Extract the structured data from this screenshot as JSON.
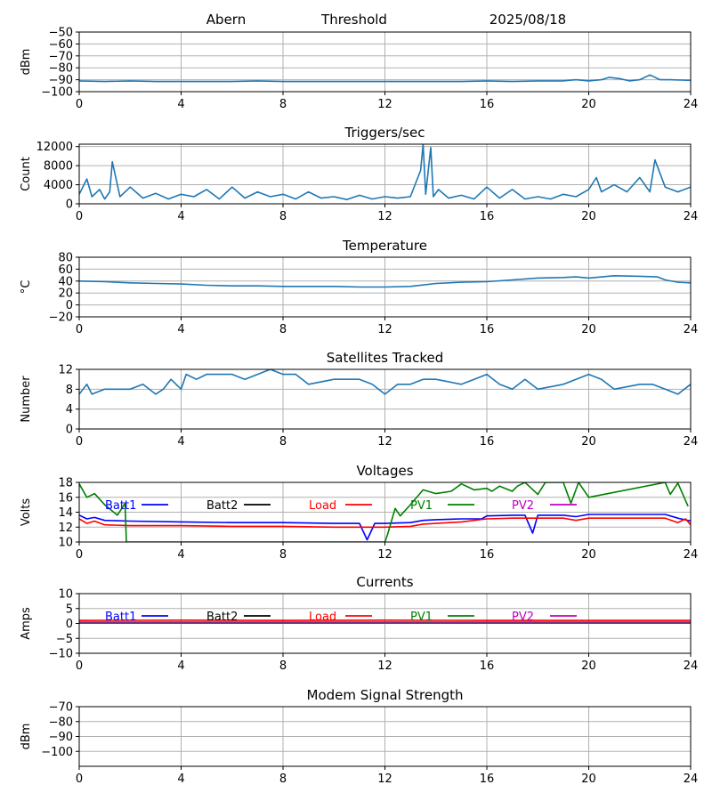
{
  "header": {
    "station": "Abern",
    "label": "Threshold",
    "date": "2025/08/18"
  },
  "colors": {
    "series": "#1f77b4",
    "grid": "#b0b0b0",
    "batt1": "#0000ff",
    "batt2": "#000000",
    "load": "#ff0000",
    "pv1": "#008000",
    "pv2": "#bf00bf"
  },
  "chart_data": [
    {
      "id": "threshold",
      "type": "line",
      "title": "",
      "xlabel": "",
      "ylabel": "dBm",
      "xlim": [
        0,
        24
      ],
      "ylim": [
        -100,
        -50
      ],
      "grid": true,
      "xticks": [
        "0",
        "4",
        "8",
        "12",
        "16",
        "20",
        "24"
      ],
      "yticks": [
        "−100",
        "−90",
        "−80",
        "−70",
        "−60",
        "−50"
      ],
      "series": [
        {
          "name": "",
          "x": [
            0,
            1,
            2,
            3,
            4,
            5,
            6,
            7,
            8,
            9,
            10,
            11,
            12,
            13,
            14,
            15,
            16,
            17,
            18,
            19,
            19.5,
            20,
            20.5,
            20.8,
            21.2,
            21.6,
            22,
            22.4,
            22.8,
            23.2,
            24
          ],
          "y": [
            -91,
            -91.5,
            -91,
            -91.5,
            -91.5,
            -91.5,
            -91.5,
            -91,
            -91.5,
            -91.5,
            -91.5,
            -91.5,
            -91.5,
            -91.5,
            -91.5,
            -91.5,
            -91,
            -91.5,
            -91,
            -91,
            -90,
            -91,
            -90,
            -88,
            -89,
            -91,
            -90,
            -86,
            -90,
            -90,
            -90.5
          ]
        }
      ]
    },
    {
      "id": "triggers",
      "type": "line",
      "title": "Triggers/sec",
      "xlabel": "",
      "ylabel": "Count",
      "xlim": [
        0,
        24
      ],
      "ylim": [
        0,
        12500
      ],
      "grid": true,
      "xticks": [
        "0",
        "4",
        "8",
        "12",
        "16",
        "20",
        "24"
      ],
      "yticks": [
        "0",
        "4000",
        "8000",
        "12000"
      ],
      "series": [
        {
          "name": "",
          "x": [
            0,
            0.3,
            0.5,
            0.8,
            1.0,
            1.2,
            1.3,
            1.6,
            2.0,
            2.5,
            3.0,
            3.5,
            4.0,
            4.5,
            5.0,
            5.5,
            6.0,
            6.5,
            7.0,
            7.5,
            8.0,
            8.5,
            9.0,
            9.5,
            10.0,
            10.5,
            11.0,
            11.5,
            12.0,
            12.5,
            13.0,
            13.4,
            13.5,
            13.6,
            13.8,
            13.9,
            14.1,
            14.5,
            15.0,
            15.5,
            16.0,
            16.5,
            17.0,
            17.5,
            18.0,
            18.5,
            19.0,
            19.5,
            20.0,
            20.3,
            20.5,
            21.0,
            21.5,
            22.0,
            22.4,
            22.6,
            23.0,
            23.5,
            24.0
          ],
          "y": [
            2000,
            5200,
            1500,
            3000,
            1000,
            2500,
            8800,
            1500,
            3500,
            1200,
            2200,
            1000,
            2000,
            1500,
            3000,
            1000,
            3500,
            1200,
            2500,
            1500,
            2000,
            1000,
            2500,
            1200,
            1500,
            900,
            1800,
            1000,
            1500,
            1200,
            1500,
            7000,
            12500,
            2000,
            11800,
            1500,
            3000,
            1200,
            1800,
            1000,
            3500,
            1200,
            3000,
            1000,
            1500,
            1000,
            2000,
            1500,
            3000,
            5500,
            2500,
            4000,
            2500,
            5500,
            2500,
            9200,
            3500,
            2500,
            3500
          ]
        }
      ]
    },
    {
      "id": "temperature",
      "type": "line",
      "title": "Temperature",
      "xlabel": "",
      "ylabel": "°C",
      "xlim": [
        0,
        24
      ],
      "ylim": [
        -20,
        80
      ],
      "grid": true,
      "xticks": [
        "0",
        "4",
        "8",
        "12",
        "16",
        "20",
        "24"
      ],
      "yticks": [
        "−20",
        "0",
        "20",
        "40",
        "60",
        "80"
      ],
      "series": [
        {
          "name": "",
          "x": [
            0,
            1,
            2,
            3,
            4,
            5,
            6,
            7,
            8,
            9,
            10,
            11,
            12,
            13,
            14,
            15,
            16,
            17,
            18,
            19,
            19.5,
            20,
            21,
            22,
            22.7,
            23,
            23.5,
            24
          ],
          "y": [
            40,
            39,
            37,
            36,
            35,
            33,
            32,
            32,
            31,
            31,
            31,
            30,
            30,
            31,
            36,
            38,
            39,
            42,
            45,
            46,
            47,
            45,
            49,
            48,
            47,
            42,
            38,
            37
          ]
        }
      ]
    },
    {
      "id": "satellites",
      "type": "line",
      "title": "Satellites Tracked",
      "xlabel": "",
      "ylabel": "Number",
      "xlim": [
        0,
        24
      ],
      "ylim": [
        0,
        12
      ],
      "grid": true,
      "xticks": [
        "0",
        "4",
        "8",
        "12",
        "16",
        "20",
        "24"
      ],
      "yticks": [
        "0",
        "4",
        "8",
        "12"
      ],
      "series": [
        {
          "name": "",
          "x": [
            0,
            0.15,
            0.3,
            0.5,
            1,
            1.5,
            2,
            2.5,
            3,
            3.3,
            3.6,
            4,
            4.2,
            4.6,
            5,
            6,
            6.5,
            7,
            7.5,
            8,
            8.5,
            9,
            10,
            11,
            11.5,
            12,
            12.5,
            13,
            13.5,
            14,
            15,
            15.5,
            16,
            16.5,
            17,
            17.5,
            18,
            19,
            19.5,
            20,
            20.5,
            21,
            22,
            22.5,
            23,
            23.5,
            24
          ],
          "y": [
            7,
            8,
            9,
            7,
            8,
            8,
            8,
            9,
            7,
            8,
            10,
            8,
            11,
            10,
            11,
            11,
            10,
            11,
            12,
            11,
            11,
            9,
            10,
            10,
            9,
            7,
            9,
            9,
            10,
            10,
            9,
            10,
            11,
            9,
            8,
            10,
            8,
            9,
            10,
            11,
            10,
            8,
            9,
            9,
            8,
            7,
            9
          ]
        }
      ]
    },
    {
      "id": "voltages",
      "type": "line",
      "title": "Voltages",
      "xlabel": "",
      "ylabel": "Volts",
      "xlim": [
        0,
        24
      ],
      "ylim": [
        10,
        18
      ],
      "grid": true,
      "xticks": [
        "0",
        "4",
        "8",
        "12",
        "16",
        "20",
        "24"
      ],
      "yticks": [
        "10",
        "12",
        "14",
        "16",
        "18"
      ],
      "series": [
        {
          "name": "Batt1",
          "color": "#0000ff",
          "x": [
            0,
            0.3,
            0.6,
            1,
            2,
            4,
            6,
            8,
            10,
            11,
            11.3,
            11.6,
            12,
            13,
            13.5,
            14,
            15,
            15.8,
            16,
            17,
            17.5,
            17.8,
            18,
            19,
            19.5,
            20,
            20.5,
            21,
            22,
            23,
            23.5,
            24
          ],
          "y": [
            13.6,
            13.1,
            13.3,
            12.9,
            12.8,
            12.7,
            12.6,
            12.6,
            12.5,
            12.5,
            10.3,
            12.5,
            12.5,
            12.6,
            12.9,
            13.0,
            13.1,
            13.1,
            13.5,
            13.6,
            13.6,
            11.2,
            13.6,
            13.6,
            13.4,
            13.7,
            13.7,
            13.7,
            13.7,
            13.7,
            13.2,
            12.8
          ]
        },
        {
          "name": "Batt2",
          "color": "#000000",
          "x": [],
          "y": []
        },
        {
          "name": "Load",
          "color": "#ff0000",
          "x": [
            0,
            0.3,
            0.6,
            1,
            2,
            4,
            6,
            8,
            10,
            11,
            11.6,
            12,
            13,
            13.5,
            14,
            15,
            16,
            17,
            18,
            19,
            19.5,
            20,
            21,
            22,
            23,
            23.5,
            23.8,
            24
          ],
          "y": [
            13.1,
            12.5,
            12.8,
            12.3,
            12.2,
            12.2,
            12.1,
            12.1,
            12.0,
            12.0,
            12.0,
            12.0,
            12.1,
            12.4,
            12.5,
            12.7,
            13.1,
            13.2,
            13.2,
            13.2,
            12.9,
            13.2,
            13.2,
            13.2,
            13.2,
            12.6,
            13.1,
            12.3
          ]
        },
        {
          "name": "PV1",
          "color": "#008000",
          "x": [
            0,
            0.3,
            0.6,
            1,
            1.5,
            1.8,
            1.85,
            12,
            12.1,
            12.4,
            12.6,
            13,
            13.5,
            14,
            14.6,
            15,
            15.5,
            16,
            16.2,
            16.5,
            17,
            17.2,
            17.5,
            18,
            18.3,
            19,
            19.3,
            19.6,
            20,
            23,
            23.2,
            23.5,
            23.9
          ],
          "y": [
            17.8,
            16,
            16.5,
            15,
            13.6,
            15.2,
            10,
            10,
            11,
            14.5,
            13.5,
            15,
            17,
            16.5,
            16.8,
            17.8,
            17,
            17.2,
            16.8,
            17.5,
            16.8,
            17.5,
            18,
            16.4,
            18,
            18,
            15.2,
            18,
            16,
            18,
            16.4,
            17.9,
            14.8
          ]
        },
        {
          "name": "PV2",
          "color": "#bf00bf",
          "x": [],
          "y": []
        }
      ]
    },
    {
      "id": "currents",
      "type": "line",
      "title": "Currents",
      "xlabel": "",
      "ylabel": "Amps",
      "xlim": [
        0,
        24
      ],
      "ylim": [
        -10,
        10
      ],
      "grid": true,
      "xticks": [
        "0",
        "4",
        "8",
        "12",
        "16",
        "20",
        "24"
      ],
      "yticks": [
        "−10",
        "−5",
        "0",
        "5",
        "10"
      ],
      "series": [
        {
          "name": "Batt1",
          "color": "#0000ff",
          "x": [
            0,
            24
          ],
          "y": [
            0.4,
            0.4
          ]
        },
        {
          "name": "Batt2",
          "color": "#000000",
          "x": [],
          "y": []
        },
        {
          "name": "Load",
          "color": "#ff0000",
          "x": [
            0,
            4,
            8,
            12,
            16,
            20,
            24
          ],
          "y": [
            1.0,
            1.1,
            1.0,
            1.1,
            1.0,
            1.0,
            1.0
          ]
        },
        {
          "name": "PV1",
          "color": "#008000",
          "x": [
            0,
            24
          ],
          "y": [
            0.2,
            0.2
          ]
        },
        {
          "name": "PV2",
          "color": "#bf00bf",
          "x": [
            0,
            24
          ],
          "y": [
            0.1,
            0.1
          ]
        }
      ]
    },
    {
      "id": "modem",
      "type": "line",
      "title": "Modem Signal Strength",
      "xlabel": "",
      "ylabel": "dBm",
      "xlim": [
        0,
        24
      ],
      "ylim": [
        -110,
        -70
      ],
      "grid": true,
      "xticks": [
        "0",
        "4",
        "8",
        "12",
        "16",
        "20",
        "24"
      ],
      "yticks": [
        "−100",
        "−90",
        "−80",
        "−70"
      ],
      "series": []
    }
  ]
}
